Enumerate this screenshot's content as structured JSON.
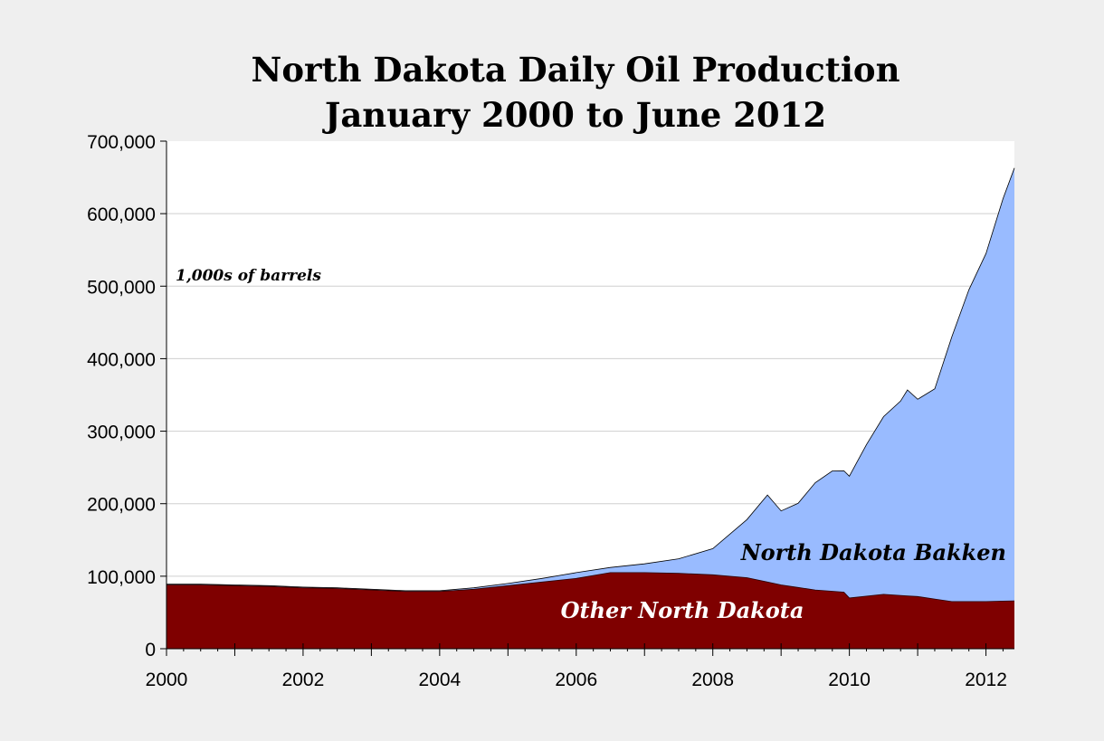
{
  "chart_data": {
    "type": "area",
    "stacked": true,
    "title": "North Dakota Daily Oil Production",
    "subtitle": "January 2000 to June 2012",
    "units_note": "1,000s of barrels",
    "xlabel": "",
    "ylabel": "",
    "xlim": [
      2000.0,
      2012.4167
    ],
    "ylim": [
      0,
      700000
    ],
    "y_ticks": [
      "0",
      "100,000",
      "200,000",
      "300,000",
      "400,000",
      "500,000",
      "600,000",
      "700,000"
    ],
    "x_ticks": [
      "2000",
      "2002",
      "2004",
      "2006",
      "2008",
      "2010",
      "2012"
    ],
    "grid": "horizontal",
    "legend": "none",
    "colors": {
      "other": "#7f0000",
      "bakken": "#99bbff",
      "background": "#efefef",
      "plot": "#ffffff"
    },
    "series": [
      {
        "name": "Other North Dakota",
        "label": "Other North Dakota",
        "x": [
          2000.0,
          2000.5,
          2001.0,
          2001.5,
          2002.0,
          2002.5,
          2003.0,
          2003.5,
          2004.0,
          2004.5,
          2005.0,
          2005.5,
          2006.0,
          2006.5,
          2007.0,
          2007.5,
          2008.0,
          2008.5,
          2009.0,
          2009.5,
          2009.92,
          2010.0,
          2010.5,
          2011.0,
          2011.5,
          2012.0,
          2012.4167
        ],
        "values": [
          88000,
          88000,
          87000,
          86000,
          84000,
          83000,
          81000,
          79000,
          79000,
          82000,
          87000,
          92000,
          97000,
          105000,
          105000,
          104000,
          102000,
          98000,
          88000,
          81000,
          78000,
          70000,
          75000,
          72000,
          65000,
          65000,
          66000
        ]
      },
      {
        "name": "North Dakota Bakken",
        "label": "North Dakota Bakken",
        "x": [
          2000.0,
          2000.5,
          2001.0,
          2001.5,
          2002.0,
          2002.5,
          2003.0,
          2003.5,
          2004.0,
          2004.5,
          2005.0,
          2005.5,
          2006.0,
          2006.5,
          2007.0,
          2007.5,
          2008.0,
          2008.5,
          2008.8,
          2009.0,
          2009.25,
          2009.5,
          2009.75,
          2010.0,
          2010.25,
          2010.5,
          2010.75,
          2010.85,
          2011.0,
          2011.25,
          2011.5,
          2011.75,
          2012.0,
          2012.25,
          2012.4167
        ],
        "values": [
          1000,
          1000,
          1000,
          1000,
          1000,
          1000,
          1000,
          1000,
          1000,
          2000,
          3000,
          5000,
          8000,
          7000,
          12000,
          20000,
          36000,
          80000,
          120000,
          102000,
          116000,
          148000,
          166000,
          168000,
          209000,
          245000,
          268000,
          284000,
          272000,
          290000,
          365000,
          430000,
          480000,
          555000,
          597000
        ]
      }
    ]
  }
}
